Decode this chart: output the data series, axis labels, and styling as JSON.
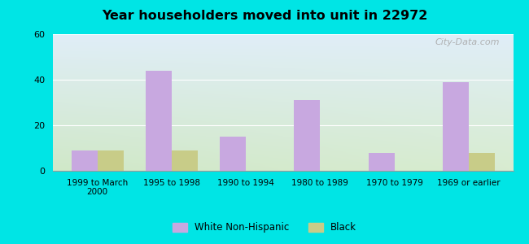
{
  "title": "Year householders moved into unit in 22972",
  "categories": [
    "1999 to March\n2000",
    "1995 to 1998",
    "1990 to 1994",
    "1980 to 1989",
    "1970 to 1979",
    "1969 or earlier"
  ],
  "white_values": [
    9,
    44,
    15,
    31,
    8,
    39
  ],
  "black_values": [
    9,
    9,
    0,
    0,
    0,
    8
  ],
  "white_color": "#c8a8e0",
  "black_color": "#c8cc88",
  "ylim": [
    0,
    60
  ],
  "yticks": [
    0,
    20,
    40,
    60
  ],
  "bg_outer": "#00e5e5",
  "bg_plot_top_left": "#e0eef8",
  "bg_plot_top_right": "#e8f0e8",
  "bg_plot_bottom_left": "#d8ecd0",
  "bg_plot_bottom_right": "#e0eed8",
  "legend_white": "White Non-Hispanic",
  "legend_black": "Black",
  "bar_width": 0.35,
  "watermark": "City-Data.com"
}
